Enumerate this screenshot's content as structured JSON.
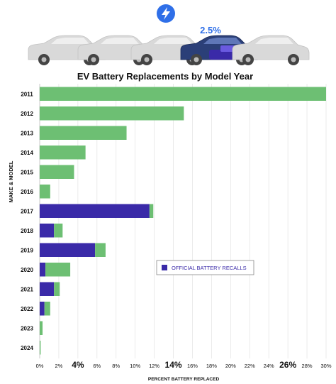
{
  "header": {
    "badge_icon": "lightning-bolt-icon",
    "highlight_value": "2.5%"
  },
  "colors": {
    "recall": "#3a2aa8",
    "other": "#6dbf73",
    "badge": "#2f6fe8",
    "car": "#d9d9d9",
    "car_highlight": "#2b3f78"
  },
  "chart_data": {
    "type": "bar",
    "orientation": "horizontal",
    "stacked": true,
    "title": "EV Battery Replacements by Model Year",
    "ylabel": "MAKE & MODEL",
    "xlabel": "PERCENT BATTERY REPLACED",
    "categories": [
      "2011",
      "2012",
      "2013",
      "2014",
      "2015",
      "2016",
      "2017",
      "2018",
      "2019",
      "2020",
      "2021",
      "2022",
      "2023",
      "2024"
    ],
    "series": [
      {
        "name": "OFFICIAL BATTERY RECALLS",
        "color": "#3a2aa8",
        "values": [
          0,
          0,
          0,
          0,
          0,
          0,
          11.5,
          1.5,
          5.8,
          0.6,
          1.5,
          0.5,
          0,
          0
        ]
      },
      {
        "color": "#6dbf73",
        "values": [
          30,
          15.1,
          9.1,
          4.8,
          3.6,
          1.1,
          0.4,
          0.9,
          1.1,
          2.6,
          0.6,
          0.6,
          0.3,
          0.1
        ]
      }
    ],
    "xlim": [
      0,
      30
    ],
    "xticks": [
      "0%",
      "2%",
      "4%",
      "6%",
      "8%",
      "10%",
      "12%",
      "14%",
      "16%",
      "18%",
      "20%",
      "22%",
      "24%",
      "26%",
      "28%",
      "30%"
    ],
    "emphasized_ticks": [
      "4%",
      "14%",
      "26%"
    ],
    "grid": true,
    "legend_position": "center-right"
  }
}
